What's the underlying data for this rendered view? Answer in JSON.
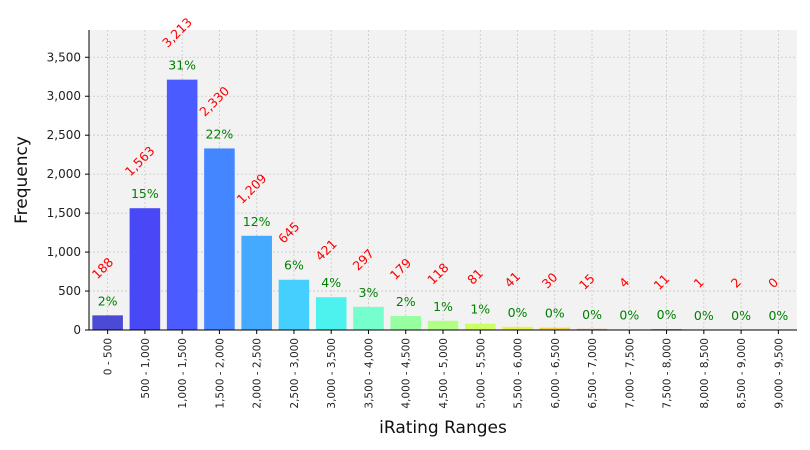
{
  "chart_data": {
    "type": "bar",
    "title": "",
    "xlabel": "iRating Ranges",
    "ylabel": "Frequency",
    "ylim": [
      0,
      3850
    ],
    "yticks": [
      0,
      500,
      1000,
      1500,
      2000,
      2500,
      3000,
      3500
    ],
    "ytick_labels": [
      "0",
      "500",
      "1,000",
      "1,500",
      "2,000",
      "2,500",
      "3,000",
      "3,500"
    ],
    "grid": true,
    "background": "#f2f2f2",
    "categories": [
      "0 - 500",
      "500 - 1,000",
      "1,000 - 1,500",
      "1,500 - 2,000",
      "2,000 - 2,500",
      "2,500 - 3,000",
      "3,000 - 3,500",
      "3,500 - 4,000",
      "4,000 - 4,500",
      "4,500 - 5,000",
      "5,000 - 5,500",
      "5,500 - 6,000",
      "6,000 - 6,500",
      "6,500 - 7,000",
      "7,000 - 7,500",
      "7,500 - 8,000",
      "8,000 - 8,500",
      "8,500 - 9,000",
      "9,000 - 9,500"
    ],
    "values": [
      188,
      1563,
      3213,
      2330,
      1209,
      645,
      421,
      297,
      179,
      118,
      81,
      41,
      30,
      15,
      4,
      11,
      1,
      2,
      0
    ],
    "count_labels": [
      "188",
      "1,563",
      "3,213",
      "2,330",
      "1,209",
      "645",
      "421",
      "297",
      "179",
      "118",
      "81",
      "41",
      "30",
      "15",
      "4",
      "11",
      "1",
      "2",
      "0"
    ],
    "percent_labels": [
      "2%",
      "15%",
      "31%",
      "22%",
      "12%",
      "6%",
      "4%",
      "3%",
      "2%",
      "1%",
      "1%",
      "0%",
      "0%",
      "0%",
      "0%",
      "0%",
      "0%",
      "0%",
      "0%"
    ],
    "colors": [
      "#4a4ad6",
      "#4848f6",
      "#4a5cff",
      "#4486ff",
      "#44aaff",
      "#45cfff",
      "#4df2ee",
      "#74ffcc",
      "#96ff9f",
      "#b1ff85",
      "#cdff65",
      "#e6f452",
      "#f2d34e",
      "#f6ad4a",
      "#fa894c",
      "#f75f45",
      "#f03f35",
      "#e03028",
      "#c42020"
    ],
    "count_label_color": "#ff0000",
    "percent_label_color": "#008000"
  }
}
